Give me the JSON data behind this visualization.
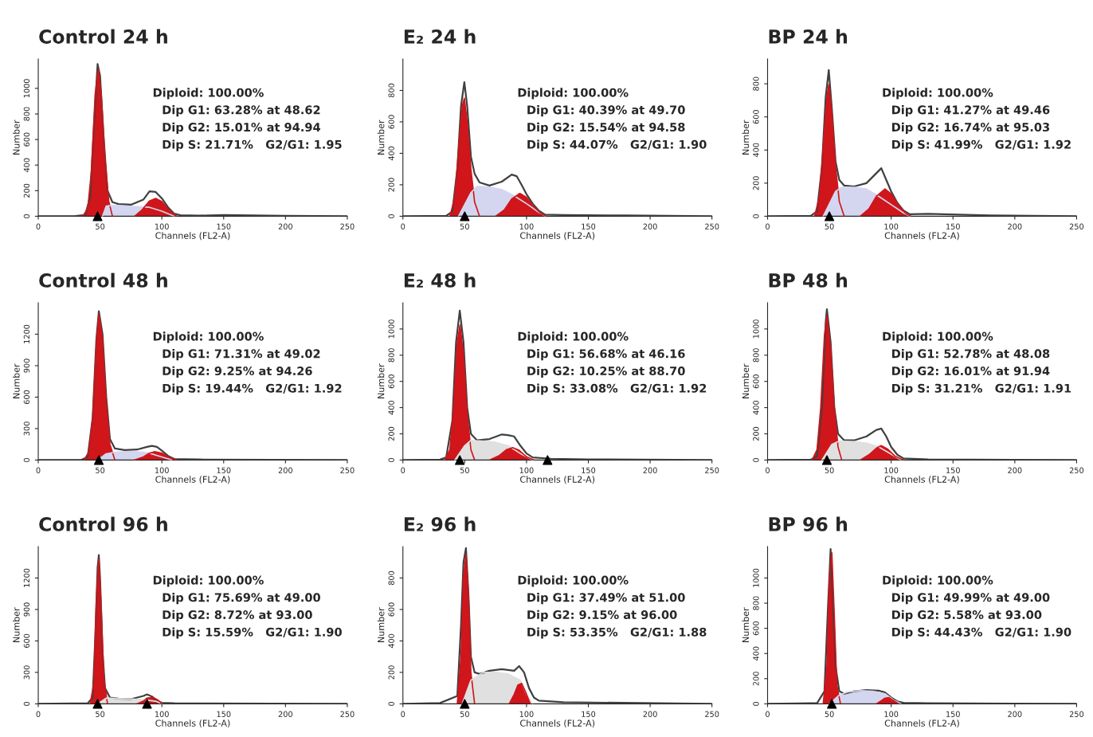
{
  "chart_data": [
    {
      "type": "area",
      "title": "Control 24 h",
      "xlabel": "Channels (FL2-A)",
      "ylabel": "Number",
      "xlim": [
        0,
        250
      ],
      "xticks": [
        0,
        50,
        100,
        150,
        200,
        250
      ],
      "ylim": [
        0,
        1230
      ],
      "yticks": [
        0,
        200,
        400,
        600,
        800,
        1000
      ],
      "annotations": [
        "Diploid: 100.00%",
        "Dip G1: 63.28% at 48.62",
        "Dip G2: 15.01% at 94.94",
        "Dip S: 21.71%   G2/G1: 1.95"
      ],
      "series": [
        {
          "color": "#d0161b",
          "x": [
            36,
            40,
            43,
            46,
            48.6,
            51,
            54,
            57,
            60
          ],
          "values": [
            0,
            60,
            350,
            950,
            1150,
            950,
            450,
            120,
            0
          ]
        },
        {
          "color": "#d4d6f0",
          "x": [
            52,
            55,
            60,
            70,
            80,
            90,
            100,
            110
          ],
          "values": [
            0,
            80,
            85,
            80,
            75,
            70,
            40,
            0
          ]
        },
        {
          "color": "#d0161b",
          "x": [
            78,
            84,
            90,
            95,
            100,
            106,
            112
          ],
          "values": [
            0,
            50,
            120,
            140,
            115,
            45,
            0
          ]
        },
        {
          "type": "line",
          "color": "#404040",
          "x": [
            0,
            30,
            38,
            42,
            45,
            48,
            50,
            53,
            56,
            60,
            65,
            75,
            85,
            90,
            95,
            100,
            105,
            110,
            115,
            130,
            150,
            200,
            250
          ],
          "values": [
            0,
            2,
            10,
            150,
            700,
            1190,
            1100,
            600,
            200,
            110,
            95,
            90,
            130,
            195,
            190,
            140,
            70,
            20,
            8,
            5,
            10,
            3,
            0
          ]
        },
        {
          "type": "scatter",
          "marker": "triangle",
          "color": "#000000",
          "x": [
            48
          ],
          "values": [
            0
          ]
        }
      ]
    },
    {
      "type": "area",
      "title": "E₂ 24 h",
      "xlabel": "Channels (FL2-A)",
      "ylabel": "Number",
      "xlim": [
        0,
        250
      ],
      "xticks": [
        0,
        50,
        100,
        150,
        200,
        250
      ],
      "ylim": [
        0,
        1000
      ],
      "yticks": [
        0,
        200,
        400,
        600,
        800
      ],
      "annotations": [
        "Diploid: 100.00%",
        "Dip G1: 40.39% at 49.70",
        "Dip G2: 15.54% at 94.58",
        "Dip S: 44.07%   G2/G1: 1.90"
      ],
      "series": [
        {
          "color": "#d0161b",
          "x": [
            38,
            42,
            45,
            48,
            49.7,
            52,
            55,
            58,
            62
          ],
          "values": [
            0,
            120,
            420,
            700,
            750,
            600,
            300,
            90,
            0
          ]
        },
        {
          "color": "#d4d6f0",
          "x": [
            45,
            55,
            60,
            70,
            80,
            90,
            100,
            110,
            115
          ],
          "values": [
            0,
            150,
            190,
            185,
            170,
            130,
            80,
            25,
            0
          ]
        },
        {
          "color": "#d0161b",
          "x": [
            75,
            82,
            88,
            94.6,
            100,
            106,
            112,
            116
          ],
          "values": [
            0,
            40,
            110,
            145,
            120,
            60,
            15,
            0
          ]
        },
        {
          "type": "line",
          "color": "#404040",
          "x": [
            0,
            35,
            40,
            44,
            47,
            49.7,
            52,
            55,
            58,
            62,
            70,
            80,
            88,
            92,
            96,
            100,
            105,
            110,
            115,
            130,
            180,
            250
          ],
          "values": [
            0,
            3,
            30,
            300,
            700,
            853,
            700,
            380,
            270,
            215,
            195,
            220,
            265,
            255,
            200,
            140,
            80,
            35,
            10,
            8,
            5,
            0
          ]
        },
        {
          "type": "scatter",
          "marker": "triangle",
          "color": "#000000",
          "x": [
            50
          ],
          "values": [
            0
          ]
        }
      ]
    },
    {
      "type": "area",
      "title": "BP 24 h",
      "xlabel": "Channels (FL2-A)",
      "ylabel": "Number",
      "xlim": [
        0,
        250
      ],
      "xticks": [
        0,
        50,
        100,
        150,
        200,
        250
      ],
      "ylim": [
        0,
        950
      ],
      "yticks": [
        0,
        200,
        400,
        600,
        800
      ],
      "annotations": [
        "Diploid: 100.00%",
        "Dip G1: 41.27% at 49.46",
        "Dip G2: 16.74% at 95.03",
        "Dip S: 41.99%   G2/G1: 1.92"
      ],
      "series": [
        {
          "color": "#d0161b",
          "x": [
            38,
            42,
            45,
            48,
            49.5,
            52,
            55,
            58,
            62
          ],
          "values": [
            0,
            120,
            420,
            720,
            795,
            620,
            300,
            90,
            0
          ]
        },
        {
          "color": "#d4d6f0",
          "x": [
            45,
            55,
            60,
            70,
            80,
            90,
            100,
            110,
            115
          ],
          "values": [
            0,
            150,
            175,
            175,
            165,
            120,
            70,
            20,
            0
          ]
        },
        {
          "color": "#d0161b",
          "x": [
            75,
            82,
            88,
            95,
            100,
            106,
            112,
            116
          ],
          "values": [
            0,
            45,
            120,
            165,
            135,
            65,
            15,
            0
          ]
        },
        {
          "type": "line",
          "color": "#404040",
          "x": [
            0,
            35,
            40,
            44,
            47,
            49.5,
            52,
            55,
            58,
            62,
            70,
            80,
            88,
            92,
            96,
            100,
            105,
            110,
            115,
            130,
            180,
            250
          ],
          "values": [
            0,
            3,
            30,
            300,
            720,
            883,
            650,
            330,
            220,
            185,
            180,
            200,
            260,
            290,
            220,
            150,
            80,
            35,
            12,
            15,
            5,
            0
          ]
        },
        {
          "type": "scatter",
          "marker": "triangle",
          "color": "#000000",
          "x": [
            50
          ],
          "values": [
            0
          ]
        }
      ]
    },
    {
      "type": "area",
      "title": "Control 48 h",
      "xlabel": "Channels (FL2-A)",
      "ylabel": "Number",
      "xlim": [
        0,
        250
      ],
      "xticks": [
        0,
        50,
        100,
        150,
        200,
        250
      ],
      "ylim": [
        0,
        1500
      ],
      "yticks": [
        0,
        300,
        600,
        900,
        1200
      ],
      "annotations": [
        "Diploid: 100.00%",
        "Dip G1: 71.31% at 49.02",
        "Dip G2: 9.25% at 94.26",
        "Dip S: 19.44%   G2/G1: 1.92"
      ],
      "series": [
        {
          "color": "#d0161b",
          "x": [
            37,
            41,
            44,
            47,
            49,
            52,
            55,
            58,
            62
          ],
          "values": [
            0,
            80,
            400,
            1100,
            1390,
            1150,
            550,
            150,
            0
          ]
        },
        {
          "color": "#d4d6f0",
          "x": [
            48,
            55,
            62,
            70,
            80,
            90,
            100,
            108
          ],
          "values": [
            0,
            60,
            75,
            80,
            80,
            65,
            30,
            0
          ]
        },
        {
          "color": "#d0161b",
          "x": [
            78,
            85,
            90,
            94.3,
            100,
            106,
            112
          ],
          "values": [
            0,
            30,
            65,
            80,
            65,
            25,
            0
          ]
        },
        {
          "type": "line",
          "color": "#404040",
          "x": [
            0,
            35,
            40,
            44,
            47,
            49,
            52,
            55,
            58,
            62,
            70,
            80,
            88,
            92,
            96,
            100,
            105,
            110,
            130,
            250
          ],
          "values": [
            0,
            3,
            30,
            400,
            1150,
            1420,
            1200,
            600,
            200,
            110,
            95,
            100,
            125,
            135,
            125,
            90,
            40,
            10,
            5,
            0
          ]
        },
        {
          "type": "scatter",
          "marker": "triangle",
          "color": "#000000",
          "x": [
            49
          ],
          "values": [
            0
          ]
        }
      ]
    },
    {
      "type": "area",
      "title": "E₂ 48 h",
      "xlabel": "Channels (FL2-A)",
      "ylabel": "Number",
      "xlim": [
        0,
        250
      ],
      "xticks": [
        0,
        50,
        100,
        150,
        200,
        250
      ],
      "ylim": [
        0,
        1200
      ],
      "yticks": [
        0,
        200,
        400,
        600,
        800,
        1000
      ],
      "annotations": [
        "Diploid: 100.00%",
        "Dip G1: 56.68% at 46.16",
        "Dip G2: 10.25% at 88.70",
        "Dip S: 33.08%   G2/G1: 1.92"
      ],
      "series": [
        {
          "color": "#d0161b",
          "x": [
            34,
            38,
            41,
            44,
            46.2,
            49,
            52,
            55,
            58
          ],
          "values": [
            0,
            80,
            400,
            900,
            1030,
            800,
            350,
            80,
            0
          ]
        },
        {
          "color": "#e0e0e0",
          "x": [
            42,
            50,
            55,
            65,
            75,
            85,
            95,
            105
          ],
          "values": [
            0,
            110,
            150,
            145,
            135,
            110,
            50,
            0
          ]
        },
        {
          "color": "#d0161b",
          "x": [
            70,
            78,
            84,
            88.7,
            94,
            100,
            106
          ],
          "values": [
            0,
            35,
            80,
            95,
            75,
            25,
            0
          ]
        },
        {
          "type": "line",
          "color": "#404040",
          "x": [
            0,
            30,
            35,
            40,
            43,
            46,
            49,
            52,
            55,
            60,
            70,
            80,
            85,
            90,
            95,
            100,
            105,
            120,
            150,
            250
          ],
          "values": [
            0,
            3,
            20,
            300,
            900,
            1140,
            900,
            400,
            200,
            150,
            160,
            195,
            190,
            180,
            110,
            50,
            20,
            10,
            5,
            0
          ]
        },
        {
          "type": "scatter",
          "marker": "triangle",
          "color": "#000000",
          "x": [
            46,
            117
          ],
          "values": [
            0,
            0
          ]
        }
      ]
    },
    {
      "type": "area",
      "title": "BP 48 h",
      "xlabel": "Channels (FL2-A)",
      "ylabel": "Number",
      "xlim": [
        0,
        250
      ],
      "xticks": [
        0,
        50,
        100,
        150,
        200,
        250
      ],
      "ylim": [
        0,
        1200
      ],
      "yticks": [
        0,
        200,
        400,
        600,
        800,
        1000
      ],
      "annotations": [
        "Diploid: 100.00%",
        "Dip G1: 52.78% at 48.08",
        "Dip G2: 16.01% at 91.94",
        "Dip S: 31.21%   G2/G1: 1.91"
      ],
      "series": [
        {
          "color": "#d0161b",
          "x": [
            36,
            40,
            43,
            46,
            48.1,
            51,
            54,
            57,
            60
          ],
          "values": [
            0,
            80,
            400,
            950,
            1100,
            850,
            400,
            100,
            0
          ]
        },
        {
          "color": "#e0e0e0",
          "x": [
            44,
            52,
            58,
            70,
            80,
            90,
            100,
            108
          ],
          "values": [
            0,
            120,
            145,
            140,
            130,
            100,
            45,
            0
          ]
        },
        {
          "color": "#d0161b",
          "x": [
            75,
            82,
            88,
            91.9,
            97,
            103,
            110
          ],
          "values": [
            0,
            40,
            90,
            110,
            85,
            30,
            0
          ]
        },
        {
          "type": "line",
          "color": "#404040",
          "x": [
            0,
            35,
            40,
            44,
            47,
            48,
            51,
            54,
            57,
            62,
            70,
            80,
            88,
            92,
            96,
            100,
            105,
            110,
            130,
            250
          ],
          "values": [
            0,
            3,
            30,
            400,
            1050,
            1150,
            900,
            400,
            200,
            150,
            150,
            180,
            230,
            240,
            180,
            100,
            40,
            12,
            5,
            0
          ]
        },
        {
          "type": "scatter",
          "marker": "triangle",
          "color": "#000000",
          "x": [
            48
          ],
          "values": [
            0
          ]
        }
      ]
    },
    {
      "type": "area",
      "title": "Control 96 h",
      "xlabel": "Channels (FL2-A)",
      "ylabel": "Number",
      "xlim": [
        0,
        250
      ],
      "xticks": [
        0,
        50,
        100,
        150,
        200,
        250
      ],
      "ylim": [
        0,
        1500
      ],
      "yticks": [
        0,
        300,
        600,
        900,
        1200
      ],
      "annotations": [
        "Diploid: 100.00%",
        "Dip G1: 75.69% at 49.00",
        "Dip G2: 8.72% at 93.00",
        "Dip S: 15.59%   G2/G1: 1.90"
      ],
      "series": [
        {
          "color": "#d0161b",
          "x": [
            42,
            45,
            47,
            49,
            51,
            53,
            56
          ],
          "values": [
            0,
            200,
            1000,
            1380,
            900,
            250,
            0
          ]
        },
        {
          "color": "#e0e0e0",
          "x": [
            48,
            55,
            65,
            75,
            85,
            95,
            100
          ],
          "values": [
            0,
            55,
            50,
            45,
            40,
            25,
            0
          ]
        },
        {
          "color": "#d0161b",
          "x": [
            80,
            85,
            88,
            93,
            97,
            100
          ],
          "values": [
            0,
            25,
            55,
            60,
            35,
            0
          ]
        },
        {
          "type": "line",
          "color": "#404040",
          "x": [
            0,
            40,
            44,
            46,
            48,
            49,
            50,
            52,
            54,
            58,
            65,
            75,
            85,
            88,
            92,
            96,
            100,
            110,
            250
          ],
          "values": [
            0,
            5,
            60,
            600,
            1300,
            1420,
            1200,
            500,
            150,
            60,
            50,
            45,
            75,
            90,
            70,
            30,
            10,
            5,
            0
          ]
        },
        {
          "type": "scatter",
          "marker": "triangle",
          "color": "#000000",
          "x": [
            48,
            88
          ],
          "values": [
            0,
            0
          ]
        }
      ]
    },
    {
      "type": "area",
      "title": "E₂ 96 h",
      "xlabel": "Channels (FL2-A)",
      "ylabel": "Number",
      "xlim": [
        0,
        250
      ],
      "xticks": [
        0,
        50,
        100,
        150,
        200,
        250
      ],
      "ylim": [
        0,
        1000
      ],
      "yticks": [
        0,
        200,
        400,
        600,
        800
      ],
      "annotations": [
        "Diploid: 100.00%",
        "Dip G1: 37.49% at 51.00",
        "Dip G2: 9.15% at 96.00",
        "Dip S: 53.35%   G2/G1: 1.88"
      ],
      "series": [
        {
          "color": "#d0161b",
          "x": [
            44,
            47,
            49,
            51,
            53,
            55,
            58
          ],
          "values": [
            0,
            300,
            800,
            950,
            700,
            200,
            0
          ]
        },
        {
          "color": "#e0e0e0",
          "x": [
            48,
            55,
            65,
            75,
            85,
            95,
            100,
            105
          ],
          "values": [
            0,
            150,
            200,
            200,
            190,
            150,
            60,
            0
          ]
        },
        {
          "color": "#d0161b",
          "x": [
            86,
            90,
            93,
            96,
            99,
            103
          ],
          "values": [
            0,
            60,
            120,
            130,
            80,
            0
          ]
        },
        {
          "type": "line",
          "color": "#404040",
          "x": [
            0,
            30,
            44,
            47,
            49,
            51,
            53,
            55,
            58,
            62,
            70,
            80,
            90,
            94,
            98,
            102,
            106,
            110,
            130,
            250
          ],
          "values": [
            0,
            5,
            50,
            500,
            900,
            990,
            700,
            300,
            200,
            190,
            210,
            220,
            210,
            240,
            200,
            100,
            40,
            20,
            10,
            0
          ]
        },
        {
          "type": "scatter",
          "marker": "triangle",
          "color": "#000000",
          "x": [
            50
          ],
          "values": [
            0
          ]
        }
      ]
    },
    {
      "type": "area",
      "title": "BP 96 h",
      "xlabel": "Channels (FL2-A)",
      "ylabel": "Number",
      "xlim": [
        0,
        250
      ],
      "xticks": [
        0,
        50,
        100,
        150,
        200,
        250
      ],
      "ylim": [
        0,
        1250
      ],
      "yticks": [
        0,
        200,
        400,
        600,
        800,
        1000
      ],
      "annotations": [
        "Diploid: 100.00%",
        "Dip G1: 49.99% at 49.00",
        "Dip G2: 5.58% at 93.00",
        "Dip S: 44.43%   G2/G1: 1.90"
      ],
      "series": [
        {
          "color": "#d0161b",
          "x": [
            45,
            48,
            50,
            52,
            54,
            56,
            59
          ],
          "values": [
            0,
            300,
            1000,
            1200,
            700,
            150,
            0
          ]
        },
        {
          "color": "#d4d6f0",
          "x": [
            50,
            58,
            65,
            75,
            85,
            95,
            102,
            108
          ],
          "values": [
            0,
            70,
            95,
            105,
            100,
            80,
            30,
            0
          ]
        },
        {
          "color": "#d0161b",
          "x": [
            88,
            92,
            95,
            98,
            102,
            106
          ],
          "values": [
            0,
            25,
            45,
            50,
            25,
            0
          ]
        },
        {
          "type": "line",
          "color": "#404040",
          "x": [
            0,
            40,
            46,
            49,
            51,
            53,
            55,
            58,
            62,
            70,
            80,
            90,
            95,
            100,
            105,
            110,
            130,
            250
          ],
          "values": [
            0,
            5,
            100,
            800,
            1230,
            800,
            300,
            100,
            80,
            100,
            110,
            105,
            90,
            50,
            20,
            8,
            5,
            0
          ]
        },
        {
          "type": "scatter",
          "marker": "triangle",
          "color": "#000000",
          "x": [
            52
          ],
          "values": [
            0
          ]
        }
      ]
    }
  ]
}
